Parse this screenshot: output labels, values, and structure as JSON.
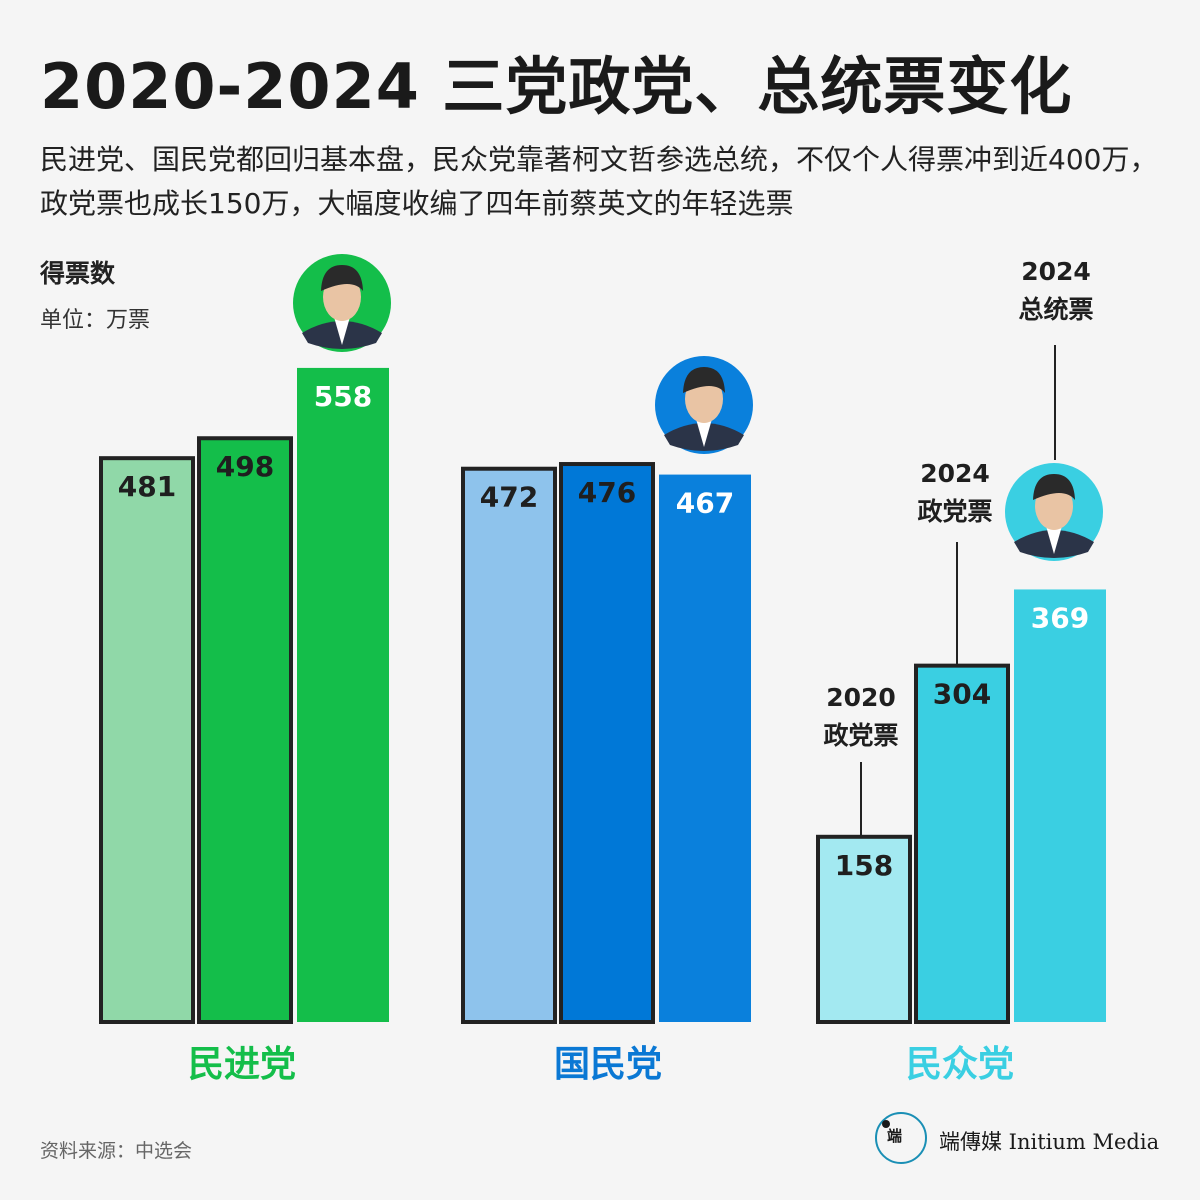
{
  "header": {
    "title": "2020-2024 三党政党、总统票变化",
    "subtitle": "民进党、国民党都回归基本盘，民众党靠著柯文哲参选总统，不仅个人得票冲到近400万，政党票也成长150万，大幅度收编了四年前蔡英文的年轻选票"
  },
  "axis": {
    "ylabel": "得票数",
    "unit": "单位：万票"
  },
  "footer": {
    "source": "资料来源：中选会",
    "brand_glyph": "端",
    "brand_text": "端傳媒 Initium Media"
  },
  "chart_data": {
    "type": "bar",
    "categories": [
      "民进党",
      "国民党",
      "民众党"
    ],
    "series": [
      {
        "values": [
          481,
          472,
          158
        ]
      },
      {
        "values": [
          498,
          476,
          304
        ]
      },
      {
        "values": [
          558,
          467,
          369
        ]
      }
    ],
    "annotations": [
      {
        "group": 2,
        "bar": 0,
        "text": [
          "2020",
          "政党票"
        ]
      },
      {
        "group": 2,
        "bar": 1,
        "text": [
          "2024",
          "政党票"
        ]
      },
      {
        "group": 2,
        "bar": 2,
        "text": [
          "2024",
          "总统票"
        ]
      }
    ],
    "colors": {
      "民进党": [
        "#90d8a8",
        "#14be4a",
        "#14be4a"
      ],
      "国民党": [
        "#8ec3ec",
        "#0078d7",
        "#0a80dc"
      ],
      "民众党": [
        "#a3e9f1",
        "#3acfe2",
        "#3acfe2"
      ],
      "labels": [
        "#14be4a",
        "#0a78d4",
        "#3acfe2"
      ],
      "outline": "#222222"
    },
    "outlined": [
      true,
      true,
      false
    ],
    "portraits": [
      "person-portrait-icon",
      "person-portrait-icon",
      "person-portrait-icon"
    ],
    "title": "2020-2024 三党政党、总统票变化",
    "ylabel": "得票数"
  }
}
